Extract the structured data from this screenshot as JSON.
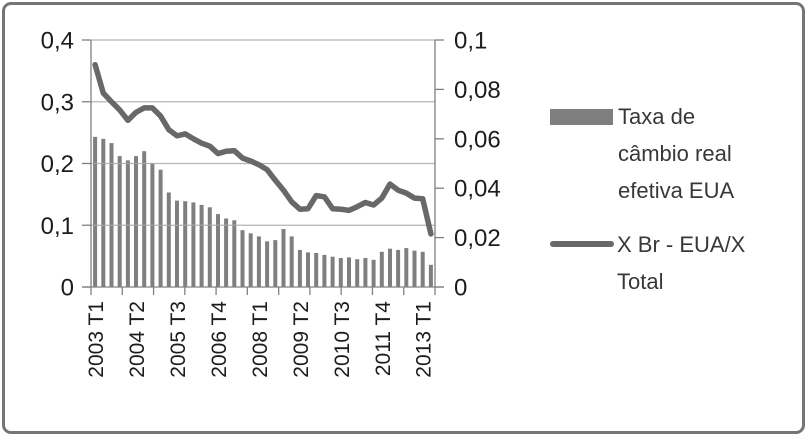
{
  "figure": {
    "background": "#ffffff",
    "frame_color": "#757575"
  },
  "legend": {
    "position": "right",
    "items": [
      {
        "label": "Taxa de câmbio real efetiva EUA",
        "swatch": "bar-swatch",
        "color": "#7f7f7f"
      },
      {
        "label": "X Br - EUA/X Total",
        "swatch": "line-swatch",
        "color": "#686868"
      }
    ]
  },
  "chart_data": {
    "type": "bar",
    "title": "",
    "xlabel": "",
    "ylabel": "",
    "grid": true,
    "legend_position": "right",
    "categories": [
      "2003 T1",
      "2003 T2",
      "2003 T3",
      "2003 T4",
      "2004 T1",
      "2004 T2",
      "2004 T3",
      "2004 T4",
      "2005 T1",
      "2005 T2",
      "2005 T3",
      "2005 T4",
      "2006 T1",
      "2006 T2",
      "2006 T3",
      "2006 T4",
      "2007 T1",
      "2007 T2",
      "2007 T3",
      "2007 T4",
      "2008 T1",
      "2008 T2",
      "2008 T3",
      "2008 T4",
      "2009 T1",
      "2009 T2",
      "2009 T3",
      "2009 T4",
      "2010 T1",
      "2010 T2",
      "2010 T3",
      "2010 T4",
      "2011 T1",
      "2011 T2",
      "2011 T3",
      "2011 T4",
      "2012 T1",
      "2012 T2",
      "2012 T3",
      "2012 T4",
      "2013 T1",
      "2013 T2"
    ],
    "x_tick_labels_shown": [
      "2003 T1",
      "2004 T2",
      "2005 T3",
      "2006 T4",
      "2008 T1",
      "2009 T2",
      "2010 T3",
      "2011 T4",
      "2013 T1"
    ],
    "label_every_n": 5,
    "series": [
      {
        "name": "Taxa de câmbio real efetiva EUA",
        "type": "bar",
        "axis": "left",
        "color": "#7f7f7f",
        "values": [
          0.243,
          0.24,
          0.233,
          0.212,
          0.205,
          0.212,
          0.22,
          0.2,
          0.19,
          0.153,
          0.14,
          0.139,
          0.137,
          0.133,
          0.129,
          0.118,
          0.111,
          0.108,
          0.092,
          0.087,
          0.082,
          0.074,
          0.076,
          0.094,
          0.082,
          0.06,
          0.056,
          0.055,
          0.052,
          0.049,
          0.047,
          0.048,
          0.045,
          0.047,
          0.044,
          0.057,
          0.062,
          0.06,
          0.063,
          0.059,
          0.057,
          0.036
        ]
      },
      {
        "name": "X Br - EUA/X Total",
        "type": "line",
        "axis": "right",
        "color": "#686868",
        "values": [
          0.09,
          0.0785,
          0.075,
          0.0717,
          0.0675,
          0.0707,
          0.0725,
          0.0725,
          0.0692,
          0.0637,
          0.0612,
          0.062,
          0.06,
          0.0582,
          0.057,
          0.054,
          0.055,
          0.0552,
          0.0522,
          0.051,
          0.0495,
          0.0475,
          0.0432,
          0.0392,
          0.0345,
          0.0315,
          0.0317,
          0.037,
          0.0365,
          0.0317,
          0.0315,
          0.031,
          0.0325,
          0.0342,
          0.0332,
          0.036,
          0.0417,
          0.0392,
          0.038,
          0.036,
          0.0357,
          0.0215
        ]
      }
    ],
    "left_axis": {
      "min": 0,
      "max": 0.4,
      "tick_labels": [
        "0,4",
        "0,3",
        "0,2",
        "0,1",
        "0"
      ]
    },
    "right_axis": {
      "min": 0,
      "max": 0.1,
      "tick_labels": [
        "0,1",
        "0,08",
        "0,06",
        "0,04",
        "0,02",
        "0"
      ]
    }
  }
}
